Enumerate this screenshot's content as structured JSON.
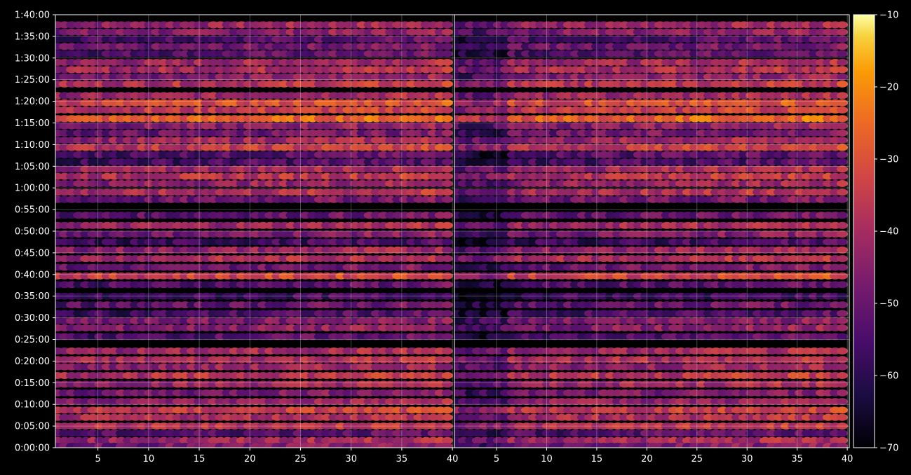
{
  "chart_data": {
    "type": "heatmap",
    "title": "",
    "xlabel": "",
    "ylabel": "",
    "colormap": "inferno",
    "background": "#000000",
    "grid": true,
    "panels": [
      {
        "xlim": [
          1,
          40
        ],
        "x_ticks": [
          "5",
          "10",
          "15",
          "20",
          "25",
          "30",
          "35",
          "40"
        ],
        "x_tick_values": [
          5,
          10,
          15,
          20,
          25,
          30,
          35,
          40
        ]
      },
      {
        "xlim": [
          1,
          40
        ],
        "x_ticks": [
          "5",
          "10",
          "15",
          "20",
          "25",
          "30",
          "35",
          "40"
        ],
        "x_tick_values": [
          5,
          10,
          15,
          20,
          25,
          30,
          35,
          40
        ]
      }
    ],
    "y_seconds_range": [
      0,
      6000
    ],
    "y_ticks": [
      "0:00:00",
      "0:05:00",
      "0:10:00",
      "0:15:00",
      "0:20:00",
      "0:25:00",
      "0:30:00",
      "0:35:00",
      "0:40:00",
      "0:45:00",
      "0:50:00",
      "0:55:00",
      "1:00:00",
      "1:05:00",
      "1:10:00",
      "1:15:00",
      "1:20:00",
      "1:25:00",
      "1:30:00",
      "1:35:00",
      "1:40:00"
    ],
    "y_tick_seconds": [
      0,
      300,
      600,
      900,
      1200,
      1500,
      1800,
      2100,
      2400,
      2700,
      3000,
      3300,
      3600,
      3900,
      4200,
      4500,
      4800,
      5100,
      5400,
      5700,
      6000
    ],
    "colorbar": {
      "range": [
        -70,
        -10
      ],
      "ticks": [
        "−10",
        "−20",
        "−30",
        "−40",
        "−50",
        "−60",
        "−70"
      ],
      "tick_values": [
        -10,
        -20,
        -30,
        -40,
        -50,
        -60,
        -70
      ]
    },
    "row_levels": [
      {
        "t": 5860,
        "level": -45
      },
      {
        "t": 5760,
        "level": -48
      },
      {
        "t": 5660,
        "level": -56
      },
      {
        "t": 5560,
        "level": -52
      },
      {
        "t": 5460,
        "level": -55
      },
      {
        "t": 5340,
        "level": -44
      },
      {
        "t": 5240,
        "level": -42
      },
      {
        "t": 5140,
        "level": -48
      },
      {
        "t": 5040,
        "level": -40
      },
      {
        "t": 4880,
        "level": -44
      },
      {
        "t": 4780,
        "level": -34
      },
      {
        "t": 4680,
        "level": -38
      },
      {
        "t": 4560,
        "level": -30
      },
      {
        "t": 4460,
        "level": -48
      },
      {
        "t": 4360,
        "level": -52
      },
      {
        "t": 4260,
        "level": -44
      },
      {
        "t": 4160,
        "level": -38
      },
      {
        "t": 4060,
        "level": -56
      },
      {
        "t": 3960,
        "level": -58
      },
      {
        "t": 3860,
        "level": -44
      },
      {
        "t": 3760,
        "level": -40
      },
      {
        "t": 3660,
        "level": -46
      },
      {
        "t": 3540,
        "level": -42
      },
      {
        "t": 3440,
        "level": -52
      },
      {
        "t": 3220,
        "level": -54
      },
      {
        "t": 3080,
        "level": -44
      },
      {
        "t": 2960,
        "level": -50
      },
      {
        "t": 2850,
        "level": -60
      },
      {
        "t": 2740,
        "level": -46
      },
      {
        "t": 2620,
        "level": -42
      },
      {
        "t": 2500,
        "level": -52
      },
      {
        "t": 2380,
        "level": -36
      },
      {
        "t": 2260,
        "level": -56
      },
      {
        "t": 2100,
        "level": -60
      },
      {
        "t": 1980,
        "level": -54
      },
      {
        "t": 1860,
        "level": -58
      },
      {
        "t": 1760,
        "level": -50
      },
      {
        "t": 1660,
        "level": -48
      },
      {
        "t": 1540,
        "level": -56
      },
      {
        "t": 1340,
        "level": -44
      },
      {
        "t": 1220,
        "level": -42
      },
      {
        "t": 1120,
        "level": -46
      },
      {
        "t": 1000,
        "level": -40
      },
      {
        "t": 880,
        "level": -44
      },
      {
        "t": 760,
        "level": -50
      },
      {
        "t": 640,
        "level": -46
      },
      {
        "t": 520,
        "level": -38
      },
      {
        "t": 420,
        "level": -42
      },
      {
        "t": 300,
        "level": -40
      },
      {
        "t": 200,
        "level": -56
      },
      {
        "t": 100,
        "level": -44
      },
      {
        "t": 20,
        "level": -50
      }
    ]
  }
}
